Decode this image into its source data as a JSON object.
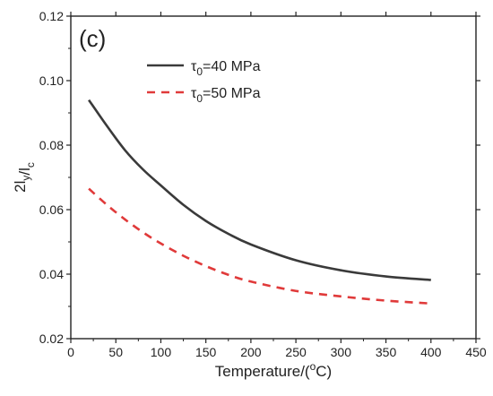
{
  "chart_data": {
    "type": "line",
    "panel_label": "(c)",
    "xlabel": "Temperature/(°C)",
    "ylabel": "2l_y/l_c",
    "xlim": [
      0,
      450
    ],
    "ylim": [
      0.02,
      0.12
    ],
    "xticks": [
      0,
      50,
      100,
      150,
      200,
      250,
      300,
      350,
      400,
      450
    ],
    "yticks": [
      "0.02",
      "0.04",
      "0.06",
      "0.08",
      "0.10",
      "0.12"
    ],
    "legend_position": "top-left",
    "grid": false,
    "x": [
      20,
      40,
      60,
      80,
      100,
      125,
      150,
      175,
      200,
      250,
      300,
      350,
      400
    ],
    "series": [
      {
        "name": "τ0=40 MPa",
        "color": "#3a3a3a",
        "dash": "solid",
        "values": [
          0.094,
          0.086,
          0.0785,
          0.0725,
          0.0675,
          0.0615,
          0.0565,
          0.0525,
          0.0492,
          0.0443,
          0.0412,
          0.0393,
          0.0382
        ]
      },
      {
        "name": "τ0=50 MPa",
        "color": "#e03a3a",
        "dash": "dashed",
        "values": [
          0.0665,
          0.0615,
          0.057,
          0.053,
          0.0495,
          0.0457,
          0.0425,
          0.0398,
          0.0377,
          0.0348,
          0.0331,
          0.0318,
          0.0309
        ]
      }
    ]
  }
}
